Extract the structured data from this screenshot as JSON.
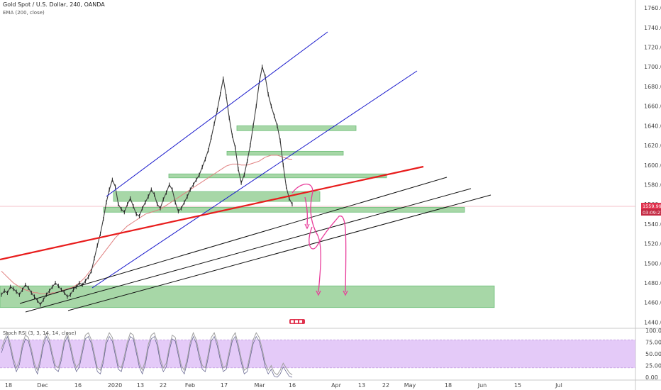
{
  "header": {
    "symbol": "Gold Spot / U.S. Dollar, 240, OANDA",
    "indicator": "EMA (200, close)"
  },
  "oscillator": {
    "label": "Stoch RSI (3, 3, 14, 14, close)",
    "ticks": [
      "100.00",
      "75.00",
      "50.00",
      "25.00",
      "0.00"
    ],
    "tick_values": [
      100,
      75,
      50,
      25,
      0
    ],
    "band": [
      20,
      80
    ]
  },
  "price_tag": {
    "price": "1559.992",
    "countdown": "03:09:21",
    "value": 1559.992
  },
  "colors": {
    "candle": "#3c3c3c",
    "ema": "#e08080",
    "channel": "#1a1acc",
    "red_line": "#e81c1c",
    "trend": "#111111",
    "zone": "#8ac98a",
    "arrow": "#e83c9a",
    "osc_band": "#d9b3f5",
    "osc_line": "#a0a0a0",
    "price_tag": "#e0344f"
  },
  "chart_data": {
    "type": "line",
    "x_axis_labels": [
      "18",
      "Dec",
      "16",
      "2020",
      "13",
      "22",
      "Feb",
      "17",
      "Mar",
      "16",
      "Apr",
      "13",
      "22",
      "May",
      "18",
      "Jun",
      "15",
      "Jul"
    ],
    "y_ticks": [
      1760,
      1740,
      1720,
      1700,
      1680,
      1660,
      1640,
      1620,
      1600,
      1580,
      1560,
      1540,
      1520,
      1500,
      1480,
      1460,
      1440
    ],
    "y_tick_labels": [
      "1760.000",
      "1740.000",
      "1720.000",
      "1700.000",
      "1680.000",
      "1660.000",
      "1640.000",
      "1620.000",
      "1600.000",
      "1580.000",
      "1560.000",
      "1540.000",
      "1520.000",
      "1500.000",
      "1480.000",
      "1460.000",
      "1440.000"
    ],
    "ylim": [
      1436,
      1768
    ],
    "series": [
      {
        "values": [
          1468,
          1472,
          1470,
          1476,
          1474,
          1471,
          1468,
          1473,
          1478,
          1475,
          1470,
          1466,
          1462,
          1458,
          1463,
          1468,
          1472,
          1476,
          1480,
          1477,
          1473,
          1470,
          1466,
          1468,
          1473,
          1476,
          1480,
          1478,
          1482,
          1486,
          1492,
          1505,
          1518,
          1530,
          1545,
          1562,
          1575,
          1585,
          1578,
          1560,
          1555,
          1552,
          1560,
          1566,
          1558,
          1550,
          1548,
          1556,
          1562,
          1568,
          1575,
          1570,
          1560,
          1556,
          1565,
          1572,
          1580,
          1575,
          1562,
          1553,
          1556,
          1562,
          1568,
          1575,
          1580,
          1585,
          1590,
          1598,
          1606,
          1615,
          1628,
          1642,
          1656,
          1672,
          1688,
          1670,
          1648,
          1630,
          1618,
          1596,
          1582,
          1590,
          1604,
          1620,
          1640,
          1660,
          1684,
          1700,
          1690,
          1672,
          1660,
          1650,
          1640,
          1625,
          1600,
          1578,
          1566,
          1560
        ]
      },
      {
        "values": [
          1492,
          1489,
          1486,
          1483,
          1480,
          1478,
          1476,
          1474,
          1473,
          1472,
          1471,
          1470,
          1470,
          1469,
          1469,
          1469,
          1469,
          1470,
          1470,
          1471,
          1472,
          1473,
          1474,
          1475,
          1476,
          1478,
          1480,
          1483,
          1486,
          1490,
          1494,
          1498,
          1502,
          1506,
          1510,
          1514,
          1518,
          1522,
          1526,
          1529,
          1532,
          1535,
          1538,
          1540,
          1542,
          1544,
          1546,
          1548,
          1550,
          1551,
          1552,
          1553,
          1554,
          1555,
          1557,
          1559,
          1561,
          1563,
          1565,
          1567,
          1569,
          1571,
          1573,
          1575,
          1577,
          1579,
          1581,
          1583,
          1585,
          1587,
          1589,
          1591,
          1593,
          1595,
          1597,
          1599,
          1600,
          1601,
          1601,
          1601,
          1600,
          1600,
          1600,
          1601,
          1602,
          1603,
          1604,
          1606,
          1608,
          1609,
          1610,
          1610,
          1610,
          1609,
          1608,
          1607,
          1606,
          1606
        ]
      }
    ],
    "zones": [
      [
        1455,
        1477
      ],
      [
        1552,
        1557
      ],
      [
        1563,
        1573
      ],
      [
        1587,
        1591
      ],
      [
        1610,
        1614
      ],
      [
        1635,
        1640
      ]
    ],
    "stoch": [
      60,
      80,
      95,
      70,
      40,
      20,
      35,
      70,
      90,
      85,
      60,
      30,
      15,
      40,
      75,
      95,
      80,
      50,
      25,
      20,
      45,
      80,
      95,
      70,
      40,
      20,
      30,
      60,
      90,
      95,
      80,
      50,
      20,
      15,
      40,
      80,
      95,
      85,
      55,
      25,
      20,
      45,
      75,
      95,
      90,
      60,
      30,
      15,
      35,
      70,
      90,
      95,
      75,
      40,
      20,
      30,
      65,
      90,
      85,
      55,
      25,
      15,
      40,
      75,
      95,
      80,
      50,
      25,
      20,
      50,
      85,
      95,
      75,
      45,
      20,
      25,
      55,
      85,
      95,
      70,
      40,
      15,
      20,
      50,
      80,
      95,
      85,
      60,
      30,
      15,
      25,
      10,
      5,
      15,
      30,
      20,
      10,
      5
    ]
  }
}
